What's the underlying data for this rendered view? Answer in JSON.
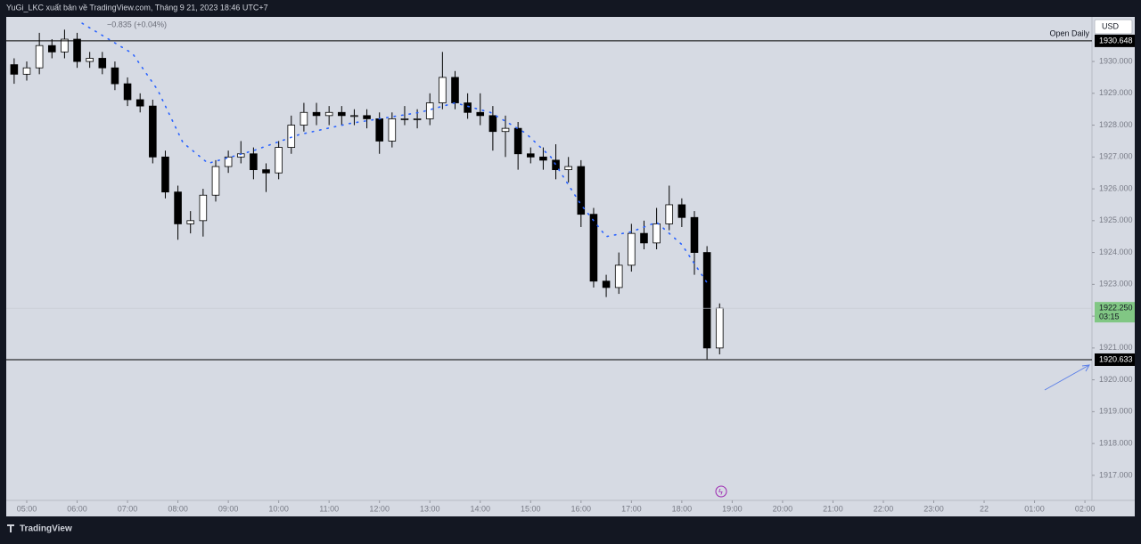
{
  "header": {
    "text": "YuGi_LKC xuất bản về TradingView.com, Tháng 9 21, 2023 18:46 UTC+7"
  },
  "chart_data": {
    "type": "candlestick",
    "legend_text": "−0.835 (+0.04%)",
    "currency": "USD",
    "xlim": [
      4.593,
      26.14
    ],
    "xticks": [
      {
        "value": 5,
        "label": "05:00"
      },
      {
        "value": 6,
        "label": "06:00"
      },
      {
        "value": 7,
        "label": "07:00"
      },
      {
        "value": 8,
        "label": "08:00"
      },
      {
        "value": 9,
        "label": "09:00"
      },
      {
        "value": 10,
        "label": "10:00"
      },
      {
        "value": 11,
        "label": "11:00"
      },
      {
        "value": 12,
        "label": "12:00"
      },
      {
        "value": 13,
        "label": "13:00"
      },
      {
        "value": 14,
        "label": "14:00"
      },
      {
        "value": 15,
        "label": "15:00"
      },
      {
        "value": 16,
        "label": "16:00"
      },
      {
        "value": 17,
        "label": "17:00"
      },
      {
        "value": 18,
        "label": "18:00"
      },
      {
        "value": 19,
        "label": "19:00"
      },
      {
        "value": 20,
        "label": "20:00"
      },
      {
        "value": 21,
        "label": "21:00"
      },
      {
        "value": 22,
        "label": "22:00"
      },
      {
        "value": 23,
        "label": "23:00"
      },
      {
        "value": 24,
        "label": "22"
      },
      {
        "value": 25,
        "label": "01:00"
      },
      {
        "value": 26,
        "label": "02:00"
      }
    ],
    "ylim": [
      1915.71,
      1931.4
    ],
    "yticks": [
      {
        "value": 1917,
        "label": "1917.000"
      },
      {
        "value": 1918,
        "label": "1918.000"
      },
      {
        "value": 1919,
        "label": "1919.000"
      },
      {
        "value": 1920,
        "label": "1920.000"
      },
      {
        "value": 1921,
        "label": "1921.000"
      },
      {
        "value": 1922,
        "label": "1922.000"
      },
      {
        "value": 1923,
        "label": "1923.000"
      },
      {
        "value": 1924,
        "label": "1924.000"
      },
      {
        "value": 1925,
        "label": "1925.000"
      },
      {
        "value": 1926,
        "label": "1926.000"
      },
      {
        "value": 1927,
        "label": "1927.000"
      },
      {
        "value": 1928,
        "label": "1928.000"
      },
      {
        "value": 1929,
        "label": "1929.000"
      },
      {
        "value": 1930,
        "label": "1930.000"
      }
    ],
    "x": [
      4.75,
      5.0,
      5.25,
      5.5,
      5.75,
      6.0,
      6.25,
      6.5,
      6.75,
      7.0,
      7.25,
      7.5,
      7.75,
      8.0,
      8.25,
      8.5,
      8.75,
      9.0,
      9.25,
      9.5,
      9.75,
      10.0,
      10.25,
      10.5,
      10.75,
      11.0,
      11.25,
      11.5,
      11.75,
      12.0,
      12.25,
      12.5,
      12.75,
      13.0,
      13.25,
      13.5,
      13.75,
      14.0,
      14.25,
      14.5,
      14.75,
      15.0,
      15.25,
      15.5,
      15.75,
      16.0,
      16.25,
      16.5,
      16.75,
      17.0,
      17.25,
      17.5,
      17.75,
      18.0,
      18.25,
      18.5,
      18.75
    ],
    "open": [
      1929.9,
      1929.6,
      1929.8,
      1930.5,
      1930.3,
      1930.7,
      1930.0,
      1930.1,
      1929.8,
      1929.3,
      1928.8,
      1928.6,
      1927.0,
      1925.9,
      1924.9,
      1925.0,
      1925.8,
      1926.7,
      1927.0,
      1927.1,
      1926.6,
      1926.5,
      1927.3,
      1928.0,
      1928.4,
      1928.3,
      1928.4,
      1928.3,
      1928.3,
      1928.2,
      1927.5,
      1928.2,
      1928.2,
      1928.2,
      1928.7,
      1929.5,
      1928.7,
      1928.4,
      1928.3,
      1927.8,
      1927.9,
      1927.1,
      1927.0,
      1926.9,
      1926.6,
      1926.7,
      1925.2,
      1923.1,
      1922.9,
      1923.6,
      1924.6,
      1924.3,
      1924.9,
      1925.5,
      1925.1,
      1924.0,
      1921.0
    ],
    "high": [
      1930.1,
      1930.0,
      1930.9,
      1930.7,
      1931.0,
      1930.9,
      1930.3,
      1930.3,
      1930.0,
      1929.5,
      1929.0,
      1928.8,
      1927.2,
      1926.1,
      1925.3,
      1926.0,
      1926.9,
      1927.2,
      1927.5,
      1927.3,
      1926.8,
      1927.5,
      1928.3,
      1928.7,
      1928.7,
      1928.6,
      1928.6,
      1928.5,
      1928.5,
      1928.4,
      1928.4,
      1928.6,
      1928.5,
      1929.0,
      1930.3,
      1929.7,
      1929.0,
      1929.0,
      1928.6,
      1928.3,
      1928.1,
      1927.3,
      1927.3,
      1927.4,
      1927.0,
      1926.9,
      1925.4,
      1923.3,
      1924.0,
      1924.9,
      1925.0,
      1925.4,
      1926.1,
      1925.7,
      1925.3,
      1924.2,
      1922.4
    ],
    "low": [
      1929.3,
      1929.4,
      1929.6,
      1930.1,
      1930.1,
      1929.8,
      1929.8,
      1929.6,
      1929.1,
      1928.6,
      1928.4,
      1926.8,
      1925.7,
      1924.4,
      1924.6,
      1924.5,
      1925.6,
      1926.5,
      1926.8,
      1926.3,
      1925.9,
      1926.3,
      1927.1,
      1927.8,
      1928.0,
      1928.0,
      1928.0,
      1928.0,
      1927.9,
      1927.1,
      1927.3,
      1928.0,
      1927.9,
      1928.0,
      1928.5,
      1928.5,
      1928.2,
      1928.0,
      1927.2,
      1927.0,
      1926.6,
      1926.8,
      1926.6,
      1926.3,
      1926.2,
      1924.8,
      1922.9,
      1922.6,
      1922.7,
      1923.4,
      1924.1,
      1924.1,
      1924.7,
      1924.8,
      1923.3,
      1920.65,
      1920.8
    ],
    "close": [
      1929.6,
      1929.8,
      1930.5,
      1930.3,
      1930.7,
      1930.0,
      1930.1,
      1929.8,
      1929.3,
      1928.8,
      1928.6,
      1927.0,
      1925.9,
      1924.9,
      1925.0,
      1925.8,
      1926.7,
      1927.0,
      1927.1,
      1926.6,
      1926.5,
      1927.3,
      1928.0,
      1928.4,
      1928.3,
      1928.4,
      1928.3,
      1928.3,
      1928.2,
      1927.5,
      1928.2,
      1928.2,
      1928.2,
      1928.7,
      1929.5,
      1928.7,
      1928.4,
      1928.3,
      1927.8,
      1927.9,
      1927.1,
      1927.0,
      1926.9,
      1926.6,
      1926.7,
      1925.2,
      1923.1,
      1922.9,
      1923.6,
      1924.6,
      1924.3,
      1924.9,
      1925.5,
      1925.1,
      1924.0,
      1921.0,
      1922.25
    ],
    "up_color": "#ffffff",
    "down_color": "#000000",
    "indicator": {
      "color": "#2962ff",
      "x": [
        6.1,
        7.1,
        7.6,
        8.1,
        8.6,
        9.5,
        10.4,
        11.4,
        12.8,
        13.5,
        14.2,
        14.9,
        15.4,
        16.0,
        16.5,
        17.0,
        17.5,
        18.0,
        18.5
      ],
      "values": [
        1931.2,
        1930.25,
        1929.1,
        1927.45,
        1926.8,
        1927.2,
        1927.7,
        1928.05,
        1928.4,
        1928.7,
        1928.4,
        1927.75,
        1927.0,
        1925.5,
        1924.5,
        1924.65,
        1924.95,
        1924.25,
        1923.05
      ]
    },
    "hlines": [
      {
        "value": 1930.648,
        "label": "Open Daily"
      },
      {
        "value": 1920.633
      }
    ],
    "last_price": {
      "value": 1922.25,
      "label": "1922.250",
      "countdown": "03:15",
      "color": "#81c784"
    }
  },
  "footer": {
    "brand": "TradingView"
  }
}
